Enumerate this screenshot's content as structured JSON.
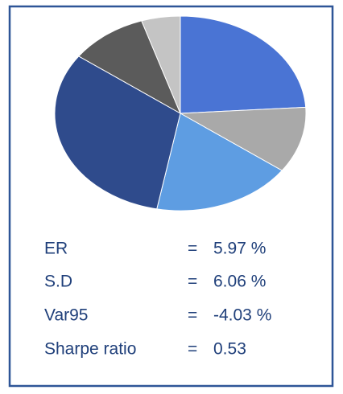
{
  "chart_data": {
    "type": "pie",
    "values": [
      24,
      11,
      18,
      32,
      10,
      5
    ],
    "colors": [
      "#4a74d4",
      "#a9a9a9",
      "#5e9de2",
      "#2f4b8c",
      "#5b5b5b",
      "#c4c4c4"
    ],
    "stats": [
      {
        "label": "ER",
        "operator": "=",
        "value": "5.97 %"
      },
      {
        "label": "S.D",
        "operator": "=",
        "value": "6.06 %"
      },
      {
        "label": "Var95",
        "operator": "=",
        "value": "-4.03 %"
      },
      {
        "label": "Sharpe ratio",
        "operator": "=",
        "value": "0.53"
      }
    ]
  }
}
